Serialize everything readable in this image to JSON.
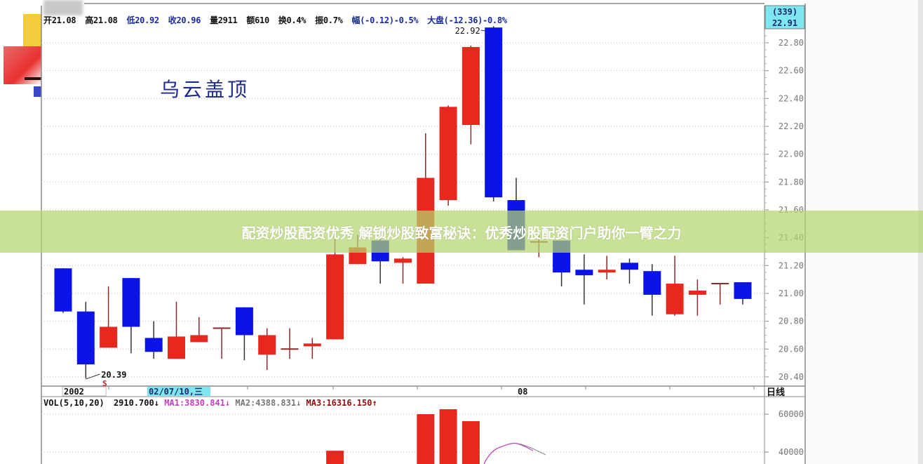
{
  "header": {
    "open": "开21.08",
    "high": "高21.08",
    "low": "低20.92",
    "close": "收20.96",
    "volume": "量2911",
    "amount": "额610",
    "turnover": "换0.4%",
    "amplitude": "振0.7%",
    "change": "幅(-0.12)-0.5%",
    "market": "大盘(-12.36)-0.8%"
  },
  "pattern_title": "乌云盖顶",
  "right_axis_header": {
    "count": "(339)",
    "price": "22.91"
  },
  "period_label": "日线",
  "volume_header": {
    "indicator": "VOL(5,10,20)",
    "value": "2910.700",
    "ma1": "MA1:3830.841",
    "ma2": "MA2:4388.831",
    "ma3": "MA3:16316.150"
  },
  "banner": {
    "text": "配资炒股配资优秀 解锁炒股致富秘诀：优秀炒股配资门户助你一臂之力"
  },
  "colors": {
    "up": "#e8281e",
    "down": "#0a14e6",
    "ma1": "#c040c0",
    "highlight": "#7ee6ee",
    "banner": "#b4d66e"
  },
  "chart_data": [
    {
      "type": "candlestick",
      "title": "乌云盖顶",
      "y_ticks": [
        "22.80",
        "22.60",
        "22.40",
        "22.20",
        "22.00",
        "21.80",
        "21.60",
        "21.40",
        "21.20",
        "21.00",
        "20.80",
        "20.60",
        "20.40"
      ],
      "ylim": [
        20.35,
        22.95
      ],
      "x_labels": [
        "2002",
        "02/07/10,三",
        "08"
      ],
      "annotations": [
        {
          "label": "22.92",
          "type": "high"
        },
        {
          "label": "20.39",
          "type": "low"
        },
        {
          "label": "S",
          "type": "marker"
        }
      ],
      "grid": true,
      "candles": [
        {
          "o": 21.18,
          "h": 21.18,
          "l": 20.86,
          "c": 20.87
        },
        {
          "o": 20.87,
          "h": 20.94,
          "l": 20.39,
          "c": 20.49
        },
        {
          "o": 20.61,
          "h": 21.05,
          "l": 20.61,
          "c": 20.76
        },
        {
          "o": 21.11,
          "h": 21.11,
          "l": 20.57,
          "c": 20.76
        },
        {
          "o": 20.68,
          "h": 20.8,
          "l": 20.53,
          "c": 20.58
        },
        {
          "o": 20.53,
          "h": 20.94,
          "l": 20.53,
          "c": 20.69
        },
        {
          "o": 20.65,
          "h": 20.83,
          "l": 20.65,
          "c": 20.7
        },
        {
          "o": 20.75,
          "h": 20.75,
          "l": 20.53,
          "c": 20.75
        },
        {
          "o": 20.9,
          "h": 20.9,
          "l": 20.52,
          "c": 20.7
        },
        {
          "o": 20.56,
          "h": 20.75,
          "l": 20.45,
          "c": 20.7
        },
        {
          "o": 20.6,
          "h": 20.75,
          "l": 20.53,
          "c": 20.6
        },
        {
          "o": 20.62,
          "h": 20.68,
          "l": 20.53,
          "c": 20.64
        },
        {
          "o": 20.67,
          "h": 21.4,
          "l": 20.67,
          "c": 21.28
        },
        {
          "o": 21.21,
          "h": 21.42,
          "l": 21.21,
          "c": 21.33
        },
        {
          "o": 21.38,
          "h": 21.42,
          "l": 21.07,
          "c": 21.23
        },
        {
          "o": 21.22,
          "h": 21.26,
          "l": 21.07,
          "c": 21.25
        },
        {
          "o": 21.07,
          "h": 22.15,
          "l": 21.07,
          "c": 21.83
        },
        {
          "o": 21.67,
          "h": 22.35,
          "l": 21.63,
          "c": 22.34
        },
        {
          "o": 22.21,
          "h": 22.78,
          "l": 22.07,
          "c": 22.77
        },
        {
          "o": 22.91,
          "h": 22.92,
          "l": 21.66,
          "c": 21.69
        },
        {
          "o": 21.67,
          "h": 21.83,
          "l": 21.31,
          "c": 21.31
        },
        {
          "o": 21.37,
          "h": 21.44,
          "l": 21.26,
          "c": 21.37
        },
        {
          "o": 21.38,
          "h": 21.38,
          "l": 21.05,
          "c": 21.15
        },
        {
          "o": 21.17,
          "h": 21.28,
          "l": 20.92,
          "c": 21.13
        },
        {
          "o": 21.15,
          "h": 21.27,
          "l": 21.1,
          "c": 21.17
        },
        {
          "o": 21.22,
          "h": 21.25,
          "l": 21.07,
          "c": 21.17
        },
        {
          "o": 21.16,
          "h": 21.21,
          "l": 20.84,
          "c": 20.99
        },
        {
          "o": 20.85,
          "h": 21.27,
          "l": 20.84,
          "c": 21.07
        },
        {
          "o": 20.99,
          "h": 21.1,
          "l": 20.84,
          "c": 21.02
        },
        {
          "o": 21.07,
          "h": 21.07,
          "l": 20.92,
          "c": 21.07
        },
        {
          "o": 21.08,
          "h": 21.08,
          "l": 20.92,
          "c": 20.96
        }
      ]
    },
    {
      "type": "bar",
      "title": "VOL(5,10,20)",
      "y_ticks": [
        "60000",
        "40000"
      ],
      "grid": true,
      "volumes": [
        null,
        null,
        null,
        null,
        null,
        null,
        null,
        null,
        null,
        null,
        null,
        null,
        40700,
        null,
        null,
        null,
        60000,
        62600,
        56300,
        null,
        null,
        null,
        null,
        null,
        null,
        null,
        null,
        null,
        null,
        null,
        null
      ]
    }
  ]
}
